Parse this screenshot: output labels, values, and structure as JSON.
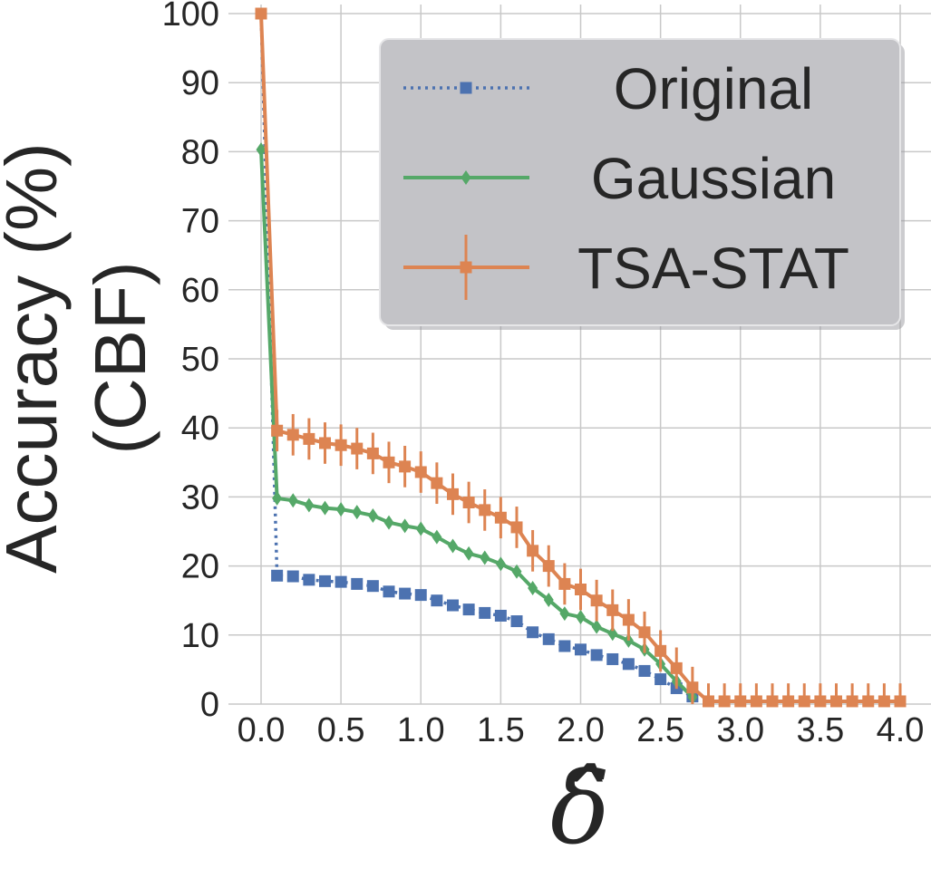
{
  "chart_data": {
    "type": "line",
    "title": "",
    "xlabel": "δ̂",
    "ylabel_lines": [
      "Accuracy (%)",
      "(CBF)"
    ],
    "xlim": [
      0,
      4
    ],
    "ylim": [
      0,
      100
    ],
    "xticks": [
      0.0,
      0.5,
      1.0,
      1.5,
      2.0,
      2.5,
      3.0,
      3.5,
      4.0
    ],
    "xtick_labels": [
      "0.0",
      "0.5",
      "1.0",
      "1.5",
      "2.0",
      "2.5",
      "3.0",
      "3.5",
      "4.0"
    ],
    "yticks": [
      0,
      10,
      20,
      30,
      40,
      50,
      60,
      70,
      80,
      90,
      100
    ],
    "ytick_labels": [
      "0",
      "10",
      "20",
      "30",
      "40",
      "50",
      "60",
      "70",
      "80",
      "90",
      "100"
    ],
    "grid": true,
    "legend_position": "top-right",
    "series": [
      {
        "name": "Original",
        "color": "#4c72b0",
        "marker": "square",
        "linestyle": "dotted",
        "x": [
          0.0,
          0.1,
          0.2,
          0.3,
          0.4,
          0.5,
          0.6,
          0.7,
          0.8,
          0.9,
          1.0,
          1.1,
          1.2,
          1.3,
          1.4,
          1.5,
          1.6,
          1.7,
          1.8,
          1.9,
          2.0,
          2.1,
          2.2,
          2.3,
          2.4,
          2.5,
          2.6,
          2.7
        ],
        "values": [
          100,
          18.6,
          18.5,
          18.0,
          17.8,
          17.7,
          17.4,
          17.1,
          16.3,
          16.0,
          15.8,
          15.0,
          14.3,
          13.7,
          13.2,
          12.8,
          12.0,
          10.4,
          9.4,
          8.4,
          7.9,
          7.1,
          6.5,
          5.8,
          4.8,
          3.6,
          2.3,
          1.1
        ]
      },
      {
        "name": "Gaussian",
        "color": "#55a868",
        "marker": "diamond",
        "linestyle": "solid",
        "x": [
          0.0,
          0.1,
          0.2,
          0.3,
          0.4,
          0.5,
          0.6,
          0.7,
          0.8,
          0.9,
          1.0,
          1.1,
          1.2,
          1.3,
          1.4,
          1.5,
          1.6,
          1.7,
          1.8,
          1.9,
          2.0,
          2.1,
          2.2,
          2.3,
          2.4,
          2.5,
          2.6,
          2.7
        ],
        "values": [
          80.3,
          29.8,
          29.5,
          28.8,
          28.4,
          28.2,
          27.8,
          27.3,
          26.3,
          25.8,
          25.4,
          24.2,
          22.9,
          21.8,
          21.2,
          20.3,
          19.2,
          16.8,
          15.1,
          13.1,
          12.6,
          11.2,
          10.2,
          9.2,
          7.9,
          5.8,
          3.3,
          1.0
        ]
      },
      {
        "name": "TSA-STAT",
        "color": "#dd8452",
        "marker": "square",
        "linestyle": "solid",
        "errorbars": true,
        "x": [
          0.0,
          0.1,
          0.2,
          0.3,
          0.4,
          0.5,
          0.6,
          0.7,
          0.8,
          0.9,
          1.0,
          1.1,
          1.2,
          1.3,
          1.4,
          1.5,
          1.6,
          1.7,
          1.8,
          1.9,
          2.0,
          2.1,
          2.2,
          2.3,
          2.4,
          2.5,
          2.6,
          2.7,
          2.8,
          2.9,
          3.0,
          3.1,
          3.2,
          3.3,
          3.4,
          3.5,
          3.6,
          3.7,
          3.8,
          3.9,
          4.0
        ],
        "values": [
          100,
          39.6,
          39.0,
          38.4,
          37.8,
          37.5,
          37.0,
          36.3,
          35.0,
          34.4,
          33.6,
          32.0,
          30.4,
          29.2,
          28.1,
          27.0,
          25.6,
          22.2,
          20.0,
          17.4,
          16.6,
          15.0,
          13.6,
          12.2,
          10.4,
          7.7,
          5.2,
          2.4,
          0.4,
          0.4,
          0.4,
          0.4,
          0.4,
          0.4,
          0.4,
          0.4,
          0.4,
          0.4,
          0.4,
          0.4,
          0.4
        ],
        "errors": [
          0,
          3.0,
          3.0,
          3.0,
          3.0,
          3.0,
          3.0,
          3.0,
          3.0,
          3.0,
          3.0,
          3.0,
          3.0,
          3.0,
          3.0,
          3.0,
          3.0,
          3.0,
          3.0,
          3.0,
          3.0,
          3.0,
          3.0,
          3.0,
          3.0,
          3.0,
          3.0,
          3.0,
          2.6,
          2.6,
          2.6,
          2.6,
          2.6,
          2.6,
          2.6,
          2.6,
          2.6,
          2.6,
          2.6,
          2.6,
          2.6
        ]
      }
    ]
  }
}
